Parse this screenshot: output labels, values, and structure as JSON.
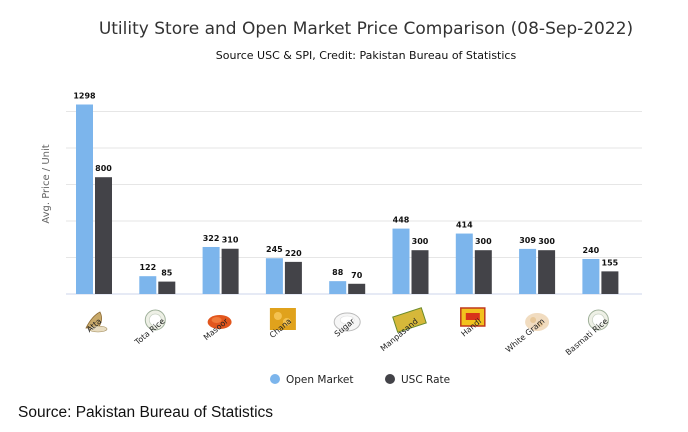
{
  "chart_data": {
    "type": "bar",
    "title": "Utility Store and Open Market Price Comparison (08-Sep-2022)",
    "subtitle": "Source USC & SPI, Credit: Pakistan Bureau of Statistics",
    "ylabel": "Avg. Price / Unit",
    "xlabel": "",
    "ylim": [
      0,
      1400
    ],
    "grid": true,
    "legend_position": "bottom",
    "categories": [
      "Atta",
      "Tota Rice",
      "Masoor",
      "Chana",
      "Sugar",
      "Manpasand",
      "Handi",
      "White Gram",
      "Basmati Rice"
    ],
    "series": [
      {
        "name": "Open Market",
        "color": "#7cb5ec",
        "values": [
          1298,
          122,
          322,
          245,
          88,
          448,
          414,
          309,
          240
        ]
      },
      {
        "name": "USC Rate",
        "color": "#434348",
        "values": [
          800,
          85,
          310,
          220,
          70,
          300,
          300,
          300,
          155
        ]
      }
    ],
    "category_icons": [
      "flour-icon",
      "rice-bowl-icon",
      "lentils-icon",
      "chickpeas-icon",
      "sugar-icon",
      "packet-icon",
      "spice-box-icon",
      "white-gram-icon",
      "basmati-rice-icon"
    ]
  },
  "footer": {
    "source_text": "Source: Pakistan Bureau of Statistics"
  },
  "colors": {
    "gridline": "#e6e6e6",
    "axis": "#ccd6eb"
  }
}
